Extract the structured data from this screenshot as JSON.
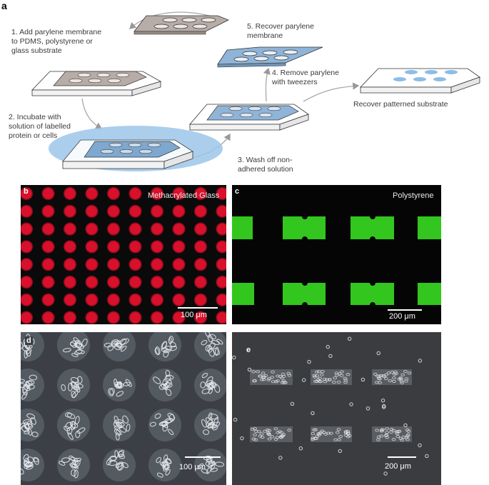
{
  "figure": {
    "panel_a": {
      "letter": "a",
      "step1": [
        "1. Add parylene membrane",
        "to PDMS, polystyrene or",
        "glass substrate"
      ],
      "step2": [
        "2. Incubate with",
        "solution of labelled",
        "protein or cells"
      ],
      "step3": [
        "3. Wash off non-",
        "adhered solution"
      ],
      "step4": [
        "4. Remove parylene",
        "with tweezers"
      ],
      "step5": [
        "5. Recover parylene",
        "membrane"
      ],
      "final": "Recover patterned substrate"
    },
    "panel_b": {
      "letter": "b",
      "label": "Methacrylated Glass",
      "scale": "100 μm",
      "spot_color": "#d8102c"
    },
    "panel_c": {
      "letter": "c",
      "label": "Polystyrene",
      "scale": "200 μm",
      "rect_color": "#2fc21f"
    },
    "panel_d": {
      "letter": "d",
      "scale": "100 μm"
    },
    "panel_e": {
      "letter": "e",
      "scale": "200 μm"
    }
  }
}
